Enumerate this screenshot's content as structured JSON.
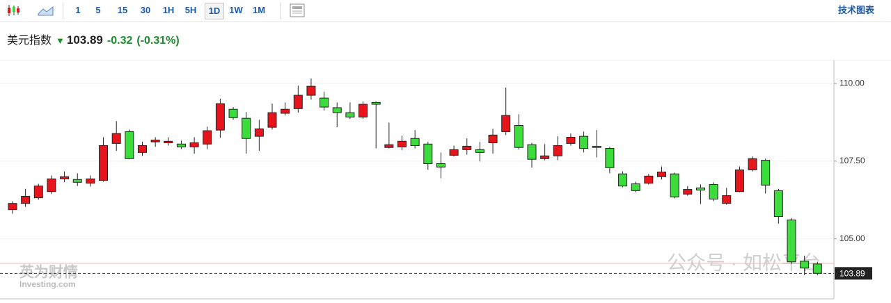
{
  "toolbar": {
    "intervals": [
      "1",
      "5",
      "15",
      "30",
      "1H",
      "5H",
      "1D",
      "1W",
      "1M"
    ],
    "active": "1D",
    "link": "技术图表"
  },
  "header": {
    "name": "美元指数",
    "change": "-0.32",
    "change_pct": "(-0.31%)"
  },
  "watermarks": [
    "英为财情",
    "Investing.com",
    "公众号 · 如松平台"
  ],
  "chart_data": {
    "type": "candlestick",
    "open": [
      105.94,
      106.14,
      106.32,
      106.52,
      106.93,
      106.91,
      106.79,
      106.88,
      108.07,
      108.45,
      107.78,
      108.12,
      108.09,
      108.05,
      107.96,
      108.05,
      108.5,
      109.17,
      108.88,
      108.3,
      108.59,
      109.04,
      109.19,
      109.62,
      109.53,
      109.22,
      109.06,
      108.92,
      109.39,
      107.94,
      107.96,
      108.23,
      108.05,
      107.42,
      107.69,
      107.87,
      107.87,
      108.09,
      108.45,
      108.65,
      108.03,
      107.58,
      107.67,
      108.07,
      108.3,
      107.98,
      107.91,
      107.09,
      106.77,
      106.79,
      107.0,
      107.09,
      106.44,
      106.64,
      106.75,
      106.14,
      106.52,
      107.22,
      107.53,
      106.55,
      105.61,
      104.28,
      104.19
    ],
    "high": [
      106.21,
      106.61,
      106.77,
      107.04,
      107.17,
      107.11,
      107.04,
      108.27,
      108.79,
      108.52,
      108.12,
      108.27,
      108.27,
      108.16,
      108.27,
      108.61,
      109.51,
      109.24,
      109.08,
      108.83,
      109.35,
      109.39,
      109.93,
      110.16,
      109.73,
      109.39,
      109.39,
      109.42,
      109.42,
      108.74,
      108.32,
      108.5,
      108.12,
      107.78,
      108.0,
      108.23,
      108.12,
      108.54,
      109.87,
      109.01,
      108.09,
      108.05,
      108.3,
      108.39,
      108.45,
      108.5,
      107.96,
      107.17,
      106.84,
      107.09,
      107.33,
      107.13,
      106.7,
      106.75,
      106.82,
      106.64,
      107.33,
      107.65,
      107.58,
      106.61,
      105.67,
      104.46,
      104.26
    ],
    "low": [
      105.81,
      106.03,
      106.26,
      106.44,
      106.82,
      106.7,
      106.68,
      106.84,
      107.83,
      107.56,
      107.67,
      107.96,
      108.0,
      107.89,
      107.74,
      107.89,
      108.25,
      108.83,
      107.74,
      107.83,
      108.52,
      108.97,
      109.06,
      109.48,
      109.13,
      108.59,
      108.86,
      108.86,
      107.91,
      107.91,
      107.85,
      107.91,
      107.22,
      106.95,
      107.65,
      107.71,
      107.49,
      107.74,
      108.34,
      107.87,
      107.29,
      107.53,
      107.53,
      108.0,
      107.78,
      107.62,
      107.11,
      106.66,
      106.5,
      106.75,
      106.91,
      106.3,
      106.39,
      106.12,
      106.21,
      106.1,
      106.5,
      107.17,
      106.46,
      105.49,
      104.19,
      103.83,
      103.83
    ],
    "close": [
      106.14,
      106.37,
      106.7,
      106.93,
      107.0,
      106.82,
      106.93,
      108.0,
      108.39,
      107.58,
      108.0,
      108.18,
      108.14,
      107.96,
      108.09,
      108.48,
      109.35,
      108.9,
      108.23,
      108.54,
      109.06,
      109.17,
      109.62,
      109.91,
      109.24,
      109.06,
      108.92,
      109.33,
      109.33,
      108.03,
      108.14,
      108.0,
      107.42,
      107.31,
      107.87,
      107.98,
      107.78,
      108.34,
      108.97,
      107.94,
      107.56,
      107.67,
      108.0,
      108.27,
      107.91,
      107.94,
      107.29,
      106.7,
      106.55,
      107.02,
      107.15,
      106.35,
      106.59,
      106.57,
      106.28,
      106.39,
      107.22,
      107.58,
      106.73,
      105.72,
      104.26,
      104.06,
      103.89
    ],
    "up_color": "#e8141c",
    "down_color": "#3ddc3d",
    "current_price": 103.89,
    "previous_close": 104.21,
    "previous_close_color": "#f2b8b0",
    "ylim": [
      103.07,
      110.74
    ],
    "yticks": [
      {
        "value": 105,
        "label": "105.00"
      },
      {
        "value": 107.5,
        "label": "107.50"
      },
      {
        "value": 110,
        "label": "110.00"
      }
    ],
    "grid": true
  }
}
